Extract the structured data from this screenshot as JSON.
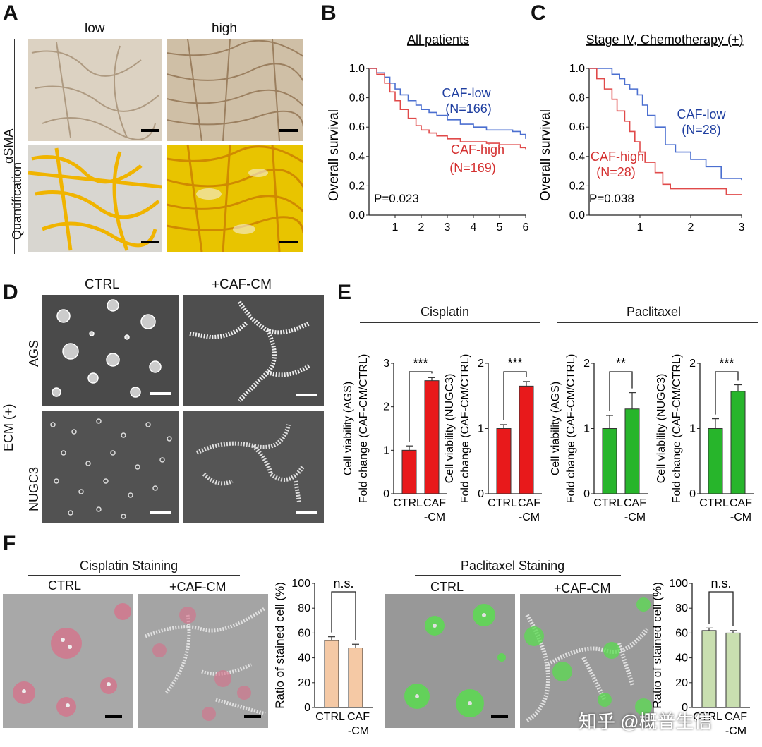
{
  "panels": {
    "A": {
      "label": "A",
      "col_low": "low",
      "col_high": "high",
      "row_label_1": "αSMA",
      "row_label_2": "Quantification"
    },
    "B": {
      "label": "B"
    },
    "C": {
      "label": "C"
    },
    "D": {
      "label": "D",
      "col_ctrl": "CTRL",
      "col_caf": "+CAF-CM",
      "row_ags": "AGS",
      "row_nugc": "NUGC3",
      "side_label": "ECM (+)"
    },
    "E": {
      "label": "E",
      "group_cisplatin": "Cisplatin",
      "group_paclitaxel": "Paclitaxel"
    },
    "F": {
      "label": "F",
      "cis_title": "Cisplatin Staining",
      "pac_title": "Paclitaxel Staining",
      "col_ctrl": "CTRL",
      "col_caf": "+CAF-CM"
    }
  },
  "watermark": "知乎 @概普生信",
  "colors": {
    "blue": "#1f3fa0",
    "red": "#d43030",
    "bar_red": "#e8191b",
    "bar_green": "#27b52b",
    "bar_peach": "#f5c9a5",
    "bar_lightgreen": "#c9dfb0",
    "km_blue": "#4b6fd0",
    "km_red": "#e04a4a"
  },
  "chart_data": [
    {
      "id": "B",
      "type": "line",
      "title": "All patients",
      "xlabel": "",
      "ylabel": "Overall survival",
      "xlim": [
        0,
        6
      ],
      "ylim": [
        0,
        1
      ],
      "xticks": [
        "1",
        "2",
        "3",
        "4",
        "5",
        "6"
      ],
      "yticks": [
        "0.0",
        "0.2",
        "0.4",
        "0.6",
        "0.8",
        "1.0"
      ],
      "annotation": "P=0.023",
      "series": [
        {
          "name": "CAF-low",
          "n_label": "(N=166)",
          "x": [
            0,
            0.3,
            0.6,
            0.8,
            1.0,
            1.2,
            1.5,
            1.8,
            2.0,
            2.3,
            2.6,
            3.0,
            3.5,
            4.0,
            4.5,
            5.0,
            5.5,
            5.8,
            6.0
          ],
          "y": [
            1.0,
            0.97,
            0.94,
            0.9,
            0.86,
            0.82,
            0.78,
            0.75,
            0.72,
            0.7,
            0.68,
            0.65,
            0.62,
            0.6,
            0.58,
            0.58,
            0.57,
            0.55,
            0.52
          ]
        },
        {
          "name": "CAF-high",
          "n_label": "(N=169)",
          "x": [
            0,
            0.3,
            0.6,
            0.8,
            1.0,
            1.2,
            1.5,
            1.8,
            2.0,
            2.3,
            2.6,
            3.0,
            3.5,
            4.0,
            4.5,
            5.0,
            5.5,
            5.8,
            6.0
          ],
          "y": [
            1.0,
            0.96,
            0.9,
            0.84,
            0.78,
            0.72,
            0.66,
            0.61,
            0.58,
            0.56,
            0.54,
            0.52,
            0.5,
            0.5,
            0.49,
            0.48,
            0.48,
            0.46,
            0.45
          ]
        }
      ]
    },
    {
      "id": "C",
      "type": "line",
      "title": "Stage IV, Chemotherapy (+)",
      "xlabel": "",
      "ylabel": "Overall survival",
      "xlim": [
        0,
        3
      ],
      "ylim": [
        0,
        1
      ],
      "xticks": [
        "1",
        "2",
        "3"
      ],
      "yticks": [
        "0.0",
        "0.2",
        "0.4",
        "0.6",
        "0.8",
        "1.0"
      ],
      "annotation": "P=0.038",
      "series": [
        {
          "name": "CAF-low",
          "n_label": "(N=28)",
          "x": [
            0,
            0.35,
            0.45,
            0.6,
            0.7,
            0.8,
            0.95,
            1.05,
            1.15,
            1.3,
            1.5,
            1.7,
            2.0,
            2.3,
            2.6,
            3.0
          ],
          "y": [
            1.0,
            1.0,
            0.96,
            0.93,
            0.89,
            0.86,
            0.82,
            0.75,
            0.68,
            0.6,
            0.48,
            0.43,
            0.38,
            0.33,
            0.25,
            0.24
          ]
        },
        {
          "name": "CAF-high",
          "n_label": "(N=28)",
          "x": [
            0,
            0.15,
            0.3,
            0.45,
            0.55,
            0.7,
            0.8,
            0.9,
            1.0,
            1.1,
            1.3,
            1.45,
            1.6,
            2.0,
            2.5,
            2.7,
            3.0
          ],
          "y": [
            1.0,
            0.93,
            0.86,
            0.79,
            0.71,
            0.64,
            0.57,
            0.5,
            0.43,
            0.36,
            0.29,
            0.21,
            0.18,
            0.18,
            0.18,
            0.14,
            0.14
          ]
        }
      ]
    },
    {
      "id": "E1",
      "type": "bar",
      "ylabel_1": "Cell viability (AGS)",
      "ylabel_2": "Fold change (CAF-CM/CTRL)",
      "categories": [
        "CTRL",
        "CAF\n-CM"
      ],
      "values": [
        1.0,
        2.6
      ],
      "errors": [
        0.1,
        0.07
      ],
      "ylim": [
        0,
        3
      ],
      "yticks": [
        "0",
        "1",
        "2",
        "3"
      ],
      "sig": "***",
      "color": "bar_red"
    },
    {
      "id": "E2",
      "type": "bar",
      "ylabel_1": "Cell viability (NUGC3)",
      "ylabel_2": "Fold change (CAF-CM/CTRL)",
      "categories": [
        "CTRL",
        "CAF\n-CM"
      ],
      "values": [
        1.0,
        1.65
      ],
      "errors": [
        0.06,
        0.07
      ],
      "ylim": [
        0,
        2
      ],
      "yticks": [
        "0",
        "1",
        "2"
      ],
      "sig": "***",
      "color": "bar_red"
    },
    {
      "id": "E3",
      "type": "bar",
      "ylabel_1": "Cell viability (AGS)",
      "ylabel_2": "Fold change (CAF-CM/CTRL)",
      "categories": [
        "CTRL",
        "CAF\n-CM"
      ],
      "values": [
        1.0,
        1.3
      ],
      "errors": [
        0.2,
        0.25
      ],
      "ylim": [
        0,
        2
      ],
      "yticks": [
        "0",
        "1",
        "2"
      ],
      "sig": "**",
      "color": "bar_green"
    },
    {
      "id": "E4",
      "type": "bar",
      "ylabel_1": "Cell viability (NUGC3)",
      "ylabel_2": "Fold change (CAF-CM/CTRL)",
      "categories": [
        "CTRL",
        "CAF\n-CM"
      ],
      "values": [
        1.0,
        1.57
      ],
      "errors": [
        0.15,
        0.1
      ],
      "ylim": [
        0,
        2
      ],
      "yticks": [
        "0",
        "1",
        "2"
      ],
      "sig": "***",
      "color": "bar_green"
    },
    {
      "id": "F1",
      "type": "bar",
      "ylabel_1": "Ratio of stained cell (%)",
      "categories": [
        "CTRL",
        "CAF\n-CM"
      ],
      "values": [
        54,
        48
      ],
      "errors": [
        3,
        3
      ],
      "ylim": [
        0,
        100
      ],
      "yticks": [
        "0",
        "20",
        "40",
        "60",
        "80",
        "100"
      ],
      "sig": "n.s.",
      "color": "bar_peach"
    },
    {
      "id": "F2",
      "type": "bar",
      "ylabel_1": "Ratio of stained cell (%)",
      "categories": [
        "CTRL",
        "CAF\n-CM"
      ],
      "values": [
        62,
        60
      ],
      "errors": [
        2,
        2
      ],
      "ylim": [
        0,
        100
      ],
      "yticks": [
        "0",
        "20",
        "40",
        "60",
        "80",
        "100"
      ],
      "sig": "n.s.",
      "color": "bar_lightgreen"
    }
  ]
}
